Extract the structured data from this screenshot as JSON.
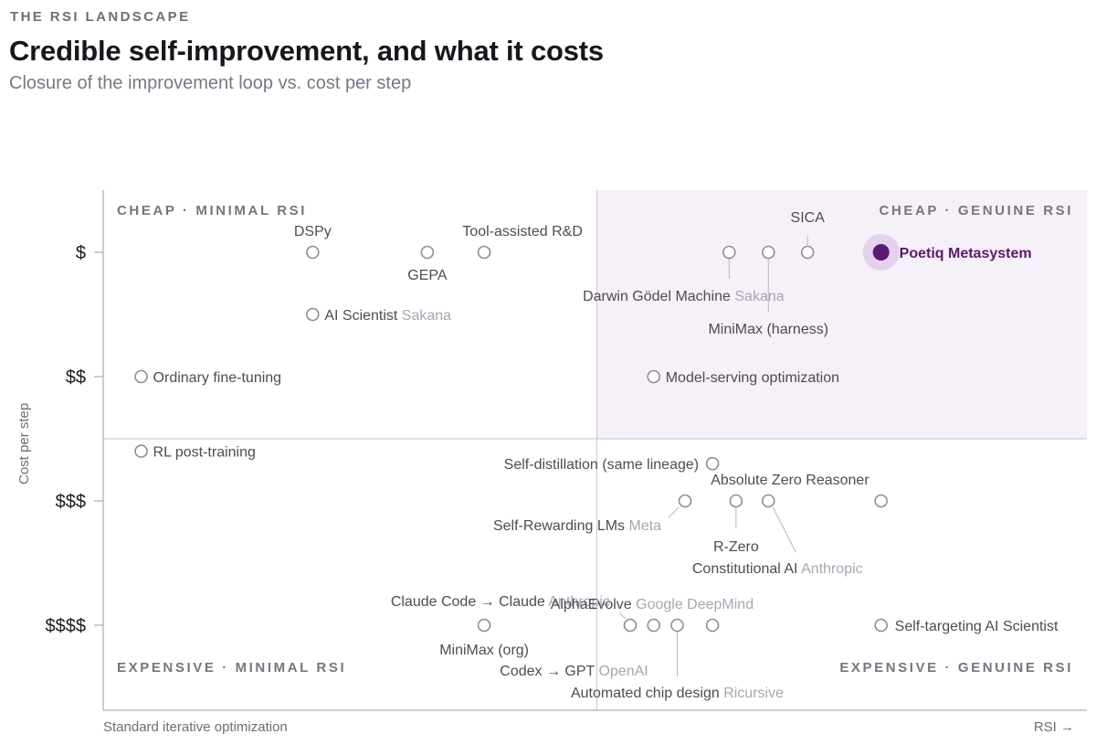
{
  "header": {
    "eyebrow": "THE RSI LANDSCAPE",
    "title": "Credible self-improvement, and what it costs",
    "subtitle": "Closure of the improvement loop vs. cost per step"
  },
  "quadrants": {
    "top_left": "CHEAP · MINIMAL RSI",
    "top_right": "CHEAP · GENUINE RSI",
    "bottom_left": "EXPENSIVE · MINIMAL RSI",
    "bottom_right": "EXPENSIVE · GENUINE RSI"
  },
  "colors": {
    "accent": "#5a1a6e",
    "accent_halo": "#e4d2ec",
    "highlight_region": "#f6f0f8",
    "marker_stroke": "#8f8b99",
    "label": "#4e4b55",
    "org_label": "#a9a5b2",
    "divider": "#cfcbd6"
  },
  "chart_data": {
    "type": "scatter",
    "title": "Credible self-improvement, and what it costs",
    "subtitle": "Closure of the improvement loop vs. cost per step",
    "ylabel": "Cost per step",
    "xlabel_left": "Standard iterative optimization",
    "xlabel_right": "RSI →",
    "y_categories": [
      "$",
      "$$",
      "$$$",
      "$$$$"
    ],
    "xlim": [
      0,
      1
    ],
    "x_midpoint": 0.5,
    "y_midpoint": 2.0,
    "grid": false,
    "points": [
      {
        "name": "DSPy",
        "x": 0.21,
        "y": 0.0
      },
      {
        "name": "GEPA",
        "x": 0.327,
        "y": 0.0
      },
      {
        "name": "Tool-assisted R&D",
        "x": 0.385,
        "y": 0.0
      },
      {
        "name": "AI Scientist",
        "org": "Sakana",
        "x": 0.21,
        "y": 0.5
      },
      {
        "name": "Darwin Gödel Machine",
        "org": "Sakana",
        "x": 0.635,
        "y": 0.0
      },
      {
        "name": "MiniMax (harness)",
        "x": 0.675,
        "y": 0.0
      },
      {
        "name": "SICA",
        "x": 0.715,
        "y": 0.0
      },
      {
        "name": "Poetiq Metasystem",
        "x": 0.79,
        "y": 0.0,
        "highlight": true
      },
      {
        "name": "Ordinary fine-tuning",
        "x": 0.035,
        "y": 1.0
      },
      {
        "name": "Model-serving optimization",
        "x": 0.558,
        "y": 1.0
      },
      {
        "name": "RL post-training",
        "x": 0.035,
        "y": 1.6
      },
      {
        "name": "Self-distillation (same lineage)",
        "x": 0.618,
        "y": 1.7
      },
      {
        "name": "Self-Rewarding LMs",
        "org": "Meta",
        "x": 0.59,
        "y": 2.0
      },
      {
        "name": "R-Zero",
        "x": 0.642,
        "y": 2.0
      },
      {
        "name": "Constitutional AI",
        "org": "Anthropic",
        "x": 0.675,
        "y": 2.0
      },
      {
        "name": "Absolute Zero Reasoner",
        "x": 0.79,
        "y": 2.0
      },
      {
        "name": "MiniMax (org)",
        "x": 0.385,
        "y": 3.0
      },
      {
        "name": "Claude Code → Claude",
        "org": "Anthropic",
        "x": 0.534,
        "y": 3.0
      },
      {
        "name": "Codex → GPT",
        "org": "OpenAI",
        "x": 0.558,
        "y": 3.0
      },
      {
        "name": "Automated chip design",
        "org": "Ricursive",
        "x": 0.582,
        "y": 3.0
      },
      {
        "name": "AlphaEvolve",
        "org": "Google DeepMind",
        "x": 0.618,
        "y": 3.0
      },
      {
        "name": "Self-targeting AI Scientist",
        "x": 0.79,
        "y": 3.0
      }
    ]
  }
}
